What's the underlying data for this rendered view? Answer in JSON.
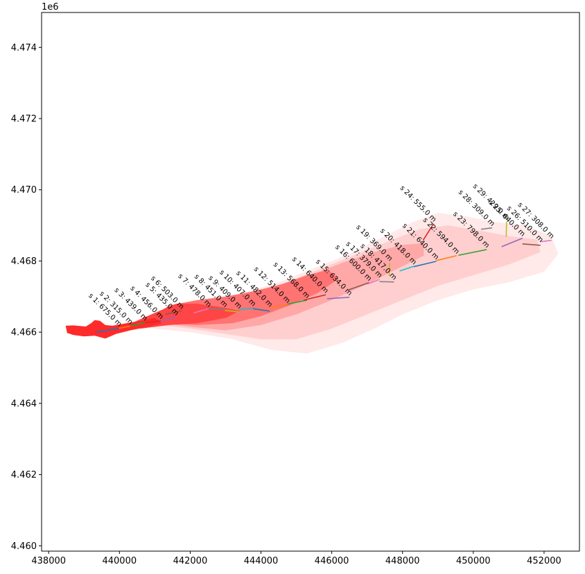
{
  "chart_data": {
    "type": "scatter",
    "title": "",
    "xlabel": "",
    "ylabel": "",
    "y_offset_label": "1e6",
    "xlim": [
      437800,
      453000
    ],
    "ylim": [
      4459850,
      4474980
    ],
    "x_ticks": [
      438000,
      440000,
      442000,
      444000,
      446000,
      448000,
      450000,
      452000
    ],
    "x_tick_labels": [
      "438000",
      "440000",
      "442000",
      "444000",
      "446000",
      "448000",
      "450000",
      "452000"
    ],
    "y_ticks": [
      4460000,
      4462000,
      4464000,
      4466000,
      4468000,
      4470000,
      4472000,
      4474000
    ],
    "y_tick_labels": [
      "4.460",
      "4.462",
      "4.464",
      "4.466",
      "4.468",
      "4.470",
      "4.472",
      "4.474"
    ],
    "grid": false,
    "legend": "none",
    "colors": {
      "plume_core": "#ff2a2a",
      "plume_mid": "#ff7070",
      "plume_light": "#ffd0d0",
      "plume_faint": "#ffe6e6",
      "axes": "#000000"
    },
    "segments": [
      {
        "label": "s 1: 675.0 m",
        "x1": 439350,
        "y1": 4466000,
        "x2": 439990,
        "y2": 4466110,
        "color": "#1f77b4"
      },
      {
        "label": "s 2: 315.0 m",
        "x1": 439990,
        "y1": 4466110,
        "x2": 440300,
        "y2": 4466170,
        "color": "#ff7f0e"
      },
      {
        "label": "s 3: 439.0 m",
        "x1": 440300,
        "y1": 4466170,
        "x2": 440720,
        "y2": 4466270,
        "color": "#2ca02c"
      },
      {
        "label": "s 4: 456.0 m",
        "x1": 440720,
        "y1": 4466270,
        "x2": 441170,
        "y2": 4466320,
        "color": "#d62728"
      },
      {
        "label": "s 5: 435.0 m",
        "x1": 441170,
        "y1": 4466320,
        "x2": 441600,
        "y2": 4466420,
        "color": "#9467bd"
      },
      {
        "label": "s 6: 503.0 m",
        "x1": 441300,
        "y1": 4466500,
        "x2": 441750,
        "y2": 4466600,
        "color": "#8c564b"
      },
      {
        "label": "s 7: 478.0 m",
        "x1": 442100,
        "y1": 4466540,
        "x2": 442520,
        "y2": 4466660,
        "color": "#e377c2"
      },
      {
        "label": "s 8: 451.0 m",
        "x1": 442520,
        "y1": 4466650,
        "x2": 442980,
        "y2": 4466650,
        "color": "#7f7f7f"
      },
      {
        "label": "s 9: 409.0 m",
        "x1": 442980,
        "y1": 4466610,
        "x2": 443380,
        "y2": 4466570,
        "color": "#bcbd22"
      },
      {
        "label": "s 10: 407.0 m",
        "x1": 443380,
        "y1": 4466630,
        "x2": 443780,
        "y2": 4466680,
        "color": "#17becf"
      },
      {
        "label": "s 11: 482.0 m",
        "x1": 443780,
        "y1": 4466660,
        "x2": 444250,
        "y2": 4466590,
        "color": "#1f77b4"
      },
      {
        "label": "s 12: 514.0 m",
        "x1": 444250,
        "y1": 4466680,
        "x2": 444750,
        "y2": 4466770,
        "color": "#ff7f0e"
      },
      {
        "label": "s 13: 568.0 m",
        "x1": 444750,
        "y1": 4466790,
        "x2": 445300,
        "y2": 4466900,
        "color": "#2ca02c"
      },
      {
        "label": "s 14: 640.0 m",
        "x1": 445200,
        "y1": 4466900,
        "x2": 445830,
        "y2": 4467050,
        "color": "#d62728"
      },
      {
        "label": "s 15: 634.0 m",
        "x1": 445870,
        "y1": 4466940,
        "x2": 446500,
        "y2": 4466980,
        "color": "#9467bd"
      },
      {
        "label": "s 16: 600.0 m",
        "x1": 446480,
        "y1": 4467190,
        "x2": 447050,
        "y2": 4467390,
        "color": "#8c564b"
      },
      {
        "label": "s 17: 379.0 m",
        "x1": 447000,
        "y1": 4467350,
        "x2": 447350,
        "y2": 4467480,
        "color": "#e377c2"
      },
      {
        "label": "s 18: 417.0 m",
        "x1": 447350,
        "y1": 4467420,
        "x2": 447760,
        "y2": 4467410,
        "color": "#7f7f7f"
      },
      {
        "label": "s 19: 369.0 m",
        "x1": 447620,
        "y1": 4467580,
        "x2": 447640,
        "y2": 4467950,
        "color": "#bcbd22"
      },
      {
        "label": "s 20: 418.0 m",
        "x1": 447920,
        "y1": 4467720,
        "x2": 448320,
        "y2": 4467850,
        "color": "#17becf"
      },
      {
        "label": "s 21: 640.0 m",
        "x1": 448320,
        "y1": 4467840,
        "x2": 448950,
        "y2": 4467990,
        "color": "#1f77b4"
      },
      {
        "label": "s 22: 594.0 m",
        "x1": 448950,
        "y1": 4468010,
        "x2": 449530,
        "y2": 4468150,
        "color": "#ff7f0e"
      },
      {
        "label": "s 23: 798.0 m",
        "x1": 449580,
        "y1": 4468160,
        "x2": 450380,
        "y2": 4468320,
        "color": "#2ca02c"
      },
      {
        "label": "s 24: 555.0 m",
        "x1": 448580,
        "y1": 4468580,
        "x2": 448880,
        "y2": 4469050,
        "color": "#d62728"
      },
      {
        "label": "s 25: 640.0 m",
        "x1": 450800,
        "y1": 4468400,
        "x2": 451390,
        "y2": 4468640,
        "color": "#9467bd"
      },
      {
        "label": "s 26: 510.0 m",
        "x1": 451390,
        "y1": 4468480,
        "x2": 451900,
        "y2": 4468440,
        "color": "#8c564b"
      },
      {
        "label": "s 27: 308.0 m",
        "x1": 451900,
        "y1": 4468540,
        "x2": 452210,
        "y2": 4468580,
        "color": "#e377c2"
      },
      {
        "label": "s 28: 309.0 m",
        "x1": 450220,
        "y1": 4468890,
        "x2": 450530,
        "y2": 4468930,
        "color": "#7f7f7f"
      },
      {
        "label": "s 29: 429.0 m",
        "x1": 450930,
        "y1": 4468680,
        "x2": 450940,
        "y2": 4469100,
        "color": "#bcbd22"
      }
    ],
    "plume_layers": [
      {
        "color": "#ffe9e9",
        "points": [
          [
            440800,
            4466200
          ],
          [
            441500,
            4466600
          ],
          [
            442500,
            4466900
          ],
          [
            443500,
            4467100
          ],
          [
            444500,
            4467400
          ],
          [
            445500,
            4467800
          ],
          [
            446500,
            4468200
          ],
          [
            447500,
            4468700
          ],
          [
            448300,
            4469100
          ],
          [
            449000,
            4469350
          ],
          [
            449800,
            4469250
          ],
          [
            450600,
            4469100
          ],
          [
            451500,
            4469000
          ],
          [
            452200,
            4468700
          ],
          [
            452400,
            4468200
          ],
          [
            452000,
            4467700
          ],
          [
            451000,
            4467400
          ],
          [
            450000,
            4467200
          ],
          [
            449000,
            4466900
          ],
          [
            448000,
            4466500
          ],
          [
            447200,
            4466100
          ],
          [
            446300,
            4465700
          ],
          [
            445300,
            4465400
          ],
          [
            444300,
            4465500
          ],
          [
            443200,
            4465800
          ],
          [
            442000,
            4466000
          ],
          [
            441000,
            4466100
          ]
        ]
      },
      {
        "color": "#ffcfcf",
        "points": [
          [
            440900,
            4466300
          ],
          [
            441500,
            4466650
          ],
          [
            442500,
            4466850
          ],
          [
            443500,
            4467050
          ],
          [
            444600,
            4467350
          ],
          [
            445600,
            4467750
          ],
          [
            446600,
            4468150
          ],
          [
            447600,
            4468550
          ],
          [
            448500,
            4468900
          ],
          [
            449300,
            4469000
          ],
          [
            450200,
            4468850
          ],
          [
            451000,
            4468700
          ],
          [
            451800,
            4468600
          ],
          [
            451900,
            4468250
          ],
          [
            451000,
            4467900
          ],
          [
            450000,
            4467600
          ],
          [
            449000,
            4467300
          ],
          [
            448000,
            4466900
          ],
          [
            447000,
            4466500
          ],
          [
            446000,
            4466100
          ],
          [
            445000,
            4465800
          ],
          [
            444000,
            4465800
          ],
          [
            443000,
            4465950
          ],
          [
            442000,
            4466100
          ],
          [
            441100,
            4466200
          ]
        ]
      },
      {
        "color": "#ffa8a8",
        "points": [
          [
            440900,
            4466350
          ],
          [
            441500,
            4466700
          ],
          [
            442500,
            4466850
          ],
          [
            443400,
            4467000
          ],
          [
            444400,
            4467250
          ],
          [
            445400,
            4467600
          ],
          [
            446300,
            4467950
          ],
          [
            447200,
            4468250
          ],
          [
            448000,
            4468450
          ],
          [
            448600,
            4468500
          ],
          [
            448600,
            4468150
          ],
          [
            447900,
            4467800
          ],
          [
            447000,
            4467350
          ],
          [
            446000,
            4466900
          ],
          [
            445000,
            4466500
          ],
          [
            444000,
            4466200
          ],
          [
            443000,
            4466050
          ],
          [
            442000,
            4466150
          ],
          [
            441200,
            4466250
          ]
        ]
      },
      {
        "color": "#ff7373",
        "points": [
          [
            440800,
            4466350
          ],
          [
            441400,
            4466750
          ],
          [
            442200,
            4466900
          ],
          [
            443000,
            4467000
          ],
          [
            443800,
            4467150
          ],
          [
            444600,
            4467350
          ],
          [
            445300,
            4467600
          ],
          [
            445900,
            4467750
          ],
          [
            446200,
            4467500
          ],
          [
            445600,
            4467100
          ],
          [
            444800,
            4466750
          ],
          [
            444000,
            4466450
          ],
          [
            443200,
            4466250
          ],
          [
            442200,
            4466200
          ],
          [
            441300,
            4466250
          ]
        ]
      },
      {
        "color": "#ff4545",
        "points": [
          [
            440100,
            4466150
          ],
          [
            440900,
            4466500
          ],
          [
            441600,
            4466800
          ],
          [
            442200,
            4466800
          ],
          [
            442900,
            4466700
          ],
          [
            443400,
            4466600
          ],
          [
            443000,
            4466400
          ],
          [
            442200,
            4466250
          ],
          [
            441400,
            4466200
          ],
          [
            440600,
            4466100
          ]
        ]
      },
      {
        "color": "#ff2a2a",
        "points": [
          [
            438480,
            4466180
          ],
          [
            438700,
            4466190
          ],
          [
            439050,
            4466160
          ],
          [
            439200,
            4466250
          ],
          [
            439300,
            4466340
          ],
          [
            439450,
            4466320
          ],
          [
            439600,
            4466200
          ],
          [
            439800,
            4466180
          ],
          [
            440200,
            4466250
          ],
          [
            440600,
            4466320
          ],
          [
            441000,
            4466400
          ],
          [
            441200,
            4466250
          ],
          [
            440800,
            4466150
          ],
          [
            440300,
            4466050
          ],
          [
            439900,
            4465950
          ],
          [
            439600,
            4465820
          ],
          [
            439300,
            4465900
          ],
          [
            439000,
            4465880
          ],
          [
            438700,
            4465920
          ],
          [
            438520,
            4465980
          ]
        ]
      }
    ]
  }
}
